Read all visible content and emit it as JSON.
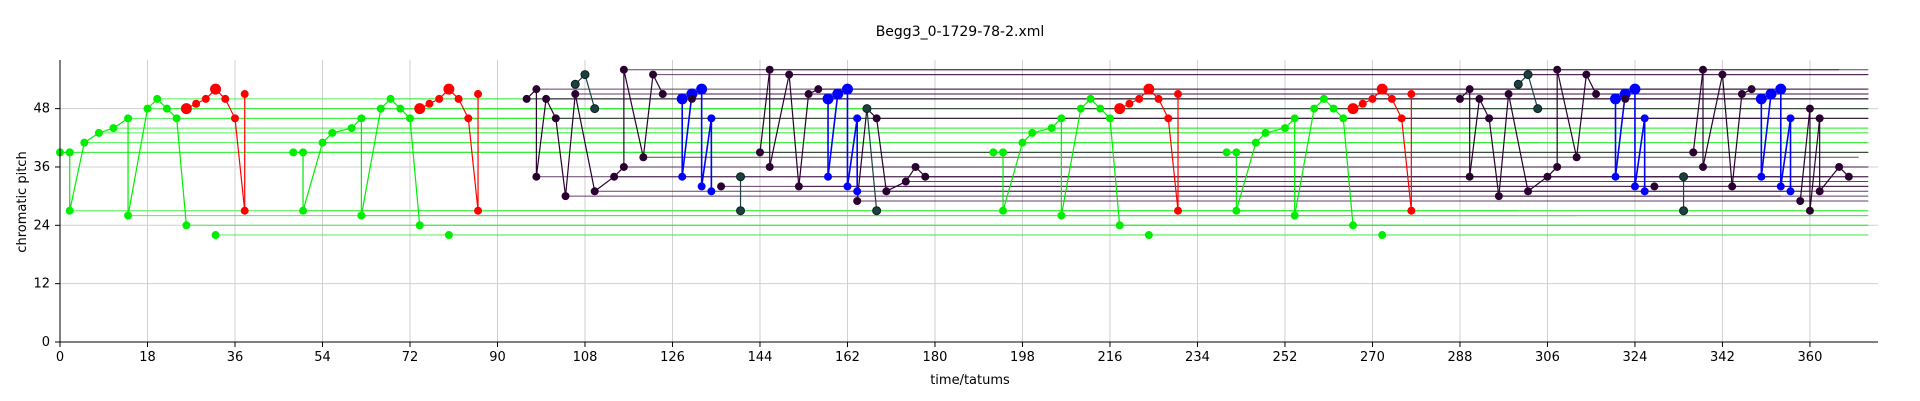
{
  "chart_data": {
    "type": "scatter",
    "title": "Begg3_0-1729-78-2.xml",
    "xlabel": "time/tatums",
    "ylabel": "chromatic pitch",
    "xlim": [
      0,
      374
    ],
    "ylim": [
      0,
      58
    ],
    "xticks": [
      0,
      18,
      36,
      54,
      72,
      90,
      108,
      126,
      144,
      162,
      180,
      198,
      216,
      234,
      252,
      270,
      288,
      306,
      324,
      342,
      360
    ],
    "yticks": [
      0,
      12,
      24,
      36,
      48
    ],
    "grid": true,
    "colors": {
      "green": "#00ee00",
      "red": "#ff0000",
      "blue": "#0000ff",
      "purple": "#2a0030",
      "teal": "#1a4040",
      "tie_purple": "#3a1040",
      "tie_green": "#33ee33"
    },
    "series": [
      {
        "color": "green",
        "points": [
          [
            0,
            39
          ],
          [
            2,
            39
          ],
          [
            2,
            27
          ],
          [
            5,
            41
          ],
          [
            8,
            43
          ],
          [
            11,
            44
          ],
          [
            14,
            46
          ],
          [
            14,
            26
          ],
          [
            18,
            48
          ],
          [
            20,
            50
          ],
          [
            22,
            48
          ],
          [
            24,
            46
          ],
          [
            26,
            24
          ],
          [
            32,
            22
          ],
          [
            48,
            39
          ],
          [
            50,
            39
          ],
          [
            50,
            27
          ],
          [
            54,
            41
          ],
          [
            56,
            43
          ],
          [
            60,
            44
          ],
          [
            62,
            46
          ],
          [
            62,
            26
          ],
          [
            66,
            48
          ],
          [
            68,
            50
          ],
          [
            70,
            48
          ],
          [
            72,
            46
          ],
          [
            74,
            24
          ],
          [
            80,
            22
          ],
          [
            192,
            39
          ],
          [
            194,
            39
          ],
          [
            194,
            27
          ],
          [
            198,
            41
          ],
          [
            200,
            43
          ],
          [
            204,
            44
          ],
          [
            206,
            46
          ],
          [
            206,
            26
          ],
          [
            210,
            48
          ],
          [
            212,
            50
          ],
          [
            214,
            48
          ],
          [
            216,
            46
          ],
          [
            218,
            24
          ],
          [
            224,
            22
          ],
          [
            240,
            39
          ],
          [
            242,
            39
          ],
          [
            242,
            27
          ],
          [
            246,
            41
          ],
          [
            248,
            43
          ],
          [
            252,
            44
          ],
          [
            254,
            46
          ],
          [
            254,
            26
          ],
          [
            258,
            48
          ],
          [
            260,
            50
          ],
          [
            262,
            48
          ],
          [
            264,
            46
          ],
          [
            266,
            24
          ],
          [
            272,
            22
          ]
        ]
      },
      {
        "color": "red",
        "points": [
          [
            26,
            48
          ],
          [
            28,
            49
          ],
          [
            30,
            50
          ],
          [
            32,
            52
          ],
          [
            34,
            50
          ],
          [
            36,
            46
          ],
          [
            38,
            27
          ],
          [
            38,
            51
          ],
          [
            74,
            48
          ],
          [
            76,
            49
          ],
          [
            78,
            50
          ],
          [
            80,
            52
          ],
          [
            82,
            50
          ],
          [
            84,
            46
          ],
          [
            86,
            27
          ],
          [
            86,
            51
          ],
          [
            218,
            48
          ],
          [
            220,
            49
          ],
          [
            222,
            50
          ],
          [
            224,
            52
          ],
          [
            226,
            50
          ],
          [
            228,
            46
          ],
          [
            230,
            27
          ],
          [
            230,
            51
          ],
          [
            266,
            48
          ],
          [
            268,
            49
          ],
          [
            270,
            50
          ],
          [
            272,
            52
          ],
          [
            274,
            50
          ],
          [
            276,
            46
          ],
          [
            278,
            27
          ],
          [
            278,
            51
          ]
        ]
      },
      {
        "color": "blue",
        "points": [
          [
            128,
            50
          ],
          [
            128,
            34
          ],
          [
            130,
            51
          ],
          [
            132,
            52
          ],
          [
            132,
            32
          ],
          [
            134,
            46
          ],
          [
            134,
            31
          ],
          [
            158,
            50
          ],
          [
            158,
            34
          ],
          [
            160,
            51
          ],
          [
            162,
            52
          ],
          [
            162,
            32
          ],
          [
            164,
            46
          ],
          [
            164,
            31
          ],
          [
            320,
            50
          ],
          [
            320,
            34
          ],
          [
            322,
            51
          ],
          [
            324,
            52
          ],
          [
            324,
            32
          ],
          [
            326,
            46
          ],
          [
            326,
            31
          ],
          [
            350,
            50
          ],
          [
            350,
            34
          ],
          [
            352,
            51
          ],
          [
            354,
            52
          ],
          [
            354,
            32
          ],
          [
            356,
            46
          ],
          [
            356,
            31
          ]
        ]
      },
      {
        "color": "purple",
        "points": [
          [
            96,
            50
          ],
          [
            98,
            52
          ],
          [
            98,
            34
          ],
          [
            100,
            50
          ],
          [
            102,
            46
          ],
          [
            104,
            30
          ],
          [
            106,
            51
          ],
          [
            110,
            31
          ],
          [
            114,
            34
          ],
          [
            116,
            36
          ],
          [
            116,
            56
          ],
          [
            120,
            38
          ],
          [
            122,
            55
          ],
          [
            124,
            51
          ],
          [
            130,
            50
          ],
          [
            136,
            32
          ],
          [
            144,
            39
          ],
          [
            146,
            56
          ],
          [
            146,
            36
          ],
          [
            150,
            55
          ],
          [
            152,
            32
          ],
          [
            154,
            51
          ],
          [
            156,
            52
          ],
          [
            164,
            29
          ],
          [
            166,
            48
          ],
          [
            168,
            46
          ],
          [
            170,
            31
          ],
          [
            174,
            33
          ],
          [
            176,
            36
          ],
          [
            178,
            34
          ],
          [
            288,
            50
          ],
          [
            290,
            52
          ],
          [
            290,
            34
          ],
          [
            292,
            50
          ],
          [
            294,
            46
          ],
          [
            296,
            30
          ],
          [
            298,
            51
          ],
          [
            302,
            31
          ],
          [
            306,
            34
          ],
          [
            308,
            36
          ],
          [
            308,
            56
          ],
          [
            312,
            38
          ],
          [
            314,
            55
          ],
          [
            316,
            51
          ],
          [
            322,
            50
          ],
          [
            328,
            32
          ],
          [
            336,
            39
          ],
          [
            338,
            56
          ],
          [
            338,
            36
          ],
          [
            342,
            55
          ],
          [
            344,
            32
          ],
          [
            346,
            51
          ],
          [
            348,
            52
          ],
          [
            358,
            29
          ],
          [
            360,
            48
          ],
          [
            360,
            27
          ],
          [
            362,
            46
          ],
          [
            362,
            31
          ],
          [
            366,
            36
          ],
          [
            368,
            34
          ]
        ]
      },
      {
        "color": "teal",
        "points": [
          [
            106,
            53
          ],
          [
            108,
            55
          ],
          [
            110,
            48
          ],
          [
            140,
            34
          ],
          [
            140,
            27
          ],
          [
            166,
            48
          ],
          [
            168,
            27
          ],
          [
            300,
            53
          ],
          [
            302,
            55
          ],
          [
            304,
            48
          ],
          [
            334,
            34
          ],
          [
            334,
            27
          ]
        ]
      }
    ]
  }
}
